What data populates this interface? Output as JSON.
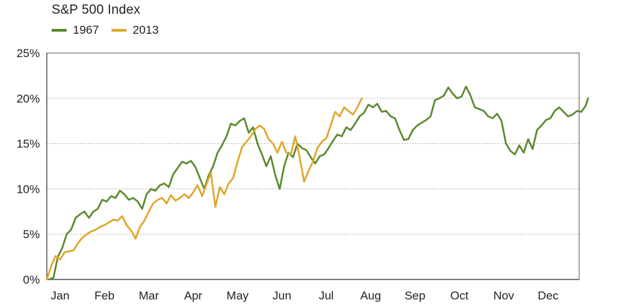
{
  "chart_data": {
    "type": "line",
    "title": "S&P 500 Index",
    "xlabel": "",
    "ylabel": "",
    "x_categories": [
      "Jan",
      "Feb",
      "Mar",
      "Apr",
      "May",
      "Jun",
      "Jul",
      "Aug",
      "Sep",
      "Oct",
      "Nov",
      "Dec"
    ],
    "xlim": [
      0,
      12
    ],
    "ylim": [
      0,
      25
    ],
    "yticks": [
      0,
      5,
      10,
      15,
      20,
      25
    ],
    "ytick_labels": [
      "0%",
      "5%",
      "10%",
      "15%",
      "20%",
      "25%"
    ],
    "grid": "horizontal-dotted",
    "legend_position": "top-left",
    "series": [
      {
        "name": "1967",
        "color": "#5b8a2e",
        "points": [
          [
            0.05,
            0.0
          ],
          [
            0.15,
            0.2
          ],
          [
            0.25,
            2.5
          ],
          [
            0.35,
            3.5
          ],
          [
            0.45,
            5.0
          ],
          [
            0.55,
            5.5
          ],
          [
            0.65,
            6.8
          ],
          [
            0.75,
            7.2
          ],
          [
            0.85,
            7.5
          ],
          [
            0.95,
            6.8
          ],
          [
            1.05,
            7.5
          ],
          [
            1.15,
            7.8
          ],
          [
            1.25,
            8.8
          ],
          [
            1.35,
            8.6
          ],
          [
            1.45,
            9.2
          ],
          [
            1.55,
            9.0
          ],
          [
            1.65,
            9.8
          ],
          [
            1.75,
            9.4
          ],
          [
            1.85,
            8.8
          ],
          [
            1.95,
            9.0
          ],
          [
            2.05,
            8.6
          ],
          [
            2.15,
            7.8
          ],
          [
            2.25,
            9.4
          ],
          [
            2.35,
            10.0
          ],
          [
            2.45,
            9.8
          ],
          [
            2.55,
            10.4
          ],
          [
            2.65,
            10.6
          ],
          [
            2.75,
            10.2
          ],
          [
            2.85,
            11.6
          ],
          [
            2.95,
            12.3
          ],
          [
            3.05,
            13.0
          ],
          [
            3.15,
            12.8
          ],
          [
            3.25,
            13.1
          ],
          [
            3.35,
            12.4
          ],
          [
            3.45,
            11.2
          ],
          [
            3.55,
            10.0
          ],
          [
            3.65,
            11.5
          ],
          [
            3.75,
            12.5
          ],
          [
            3.85,
            14.0
          ],
          [
            3.95,
            14.8
          ],
          [
            4.05,
            15.8
          ],
          [
            4.15,
            17.2
          ],
          [
            4.25,
            17.0
          ],
          [
            4.35,
            17.5
          ],
          [
            4.45,
            17.8
          ],
          [
            4.55,
            16.2
          ],
          [
            4.65,
            16.8
          ],
          [
            4.75,
            15.0
          ],
          [
            4.85,
            13.8
          ],
          [
            4.95,
            12.5
          ],
          [
            5.05,
            13.6
          ],
          [
            5.15,
            11.5
          ],
          [
            5.25,
            10.0
          ],
          [
            5.35,
            12.5
          ],
          [
            5.45,
            14.0
          ],
          [
            5.55,
            13.5
          ],
          [
            5.65,
            15.0
          ],
          [
            5.75,
            14.5
          ],
          [
            5.85,
            14.3
          ],
          [
            5.95,
            13.5
          ],
          [
            6.05,
            12.8
          ],
          [
            6.15,
            13.6
          ],
          [
            6.25,
            13.8
          ],
          [
            6.35,
            14.5
          ],
          [
            6.45,
            15.3
          ],
          [
            6.55,
            16.0
          ],
          [
            6.65,
            15.8
          ],
          [
            6.75,
            16.8
          ],
          [
            6.85,
            16.5
          ],
          [
            6.95,
            17.2
          ],
          [
            7.05,
            18.0
          ],
          [
            7.15,
            18.4
          ],
          [
            7.25,
            19.3
          ],
          [
            7.35,
            19.0
          ],
          [
            7.45,
            19.4
          ],
          [
            7.55,
            18.5
          ],
          [
            7.65,
            18.6
          ],
          [
            7.75,
            18.0
          ],
          [
            7.85,
            17.8
          ],
          [
            7.95,
            16.5
          ],
          [
            8.05,
            15.4
          ],
          [
            8.15,
            15.5
          ],
          [
            8.25,
            16.5
          ],
          [
            8.35,
            17.0
          ],
          [
            8.45,
            17.3
          ],
          [
            8.55,
            17.6
          ],
          [
            8.65,
            18.0
          ],
          [
            8.75,
            19.8
          ],
          [
            8.85,
            20.0
          ],
          [
            8.95,
            20.3
          ],
          [
            9.05,
            21.2
          ],
          [
            9.15,
            20.5
          ],
          [
            9.25,
            20.0
          ],
          [
            9.35,
            20.2
          ],
          [
            9.45,
            21.3
          ],
          [
            9.55,
            20.3
          ],
          [
            9.65,
            19.0
          ],
          [
            9.75,
            18.8
          ],
          [
            9.85,
            18.6
          ],
          [
            9.95,
            18.0
          ],
          [
            10.05,
            17.8
          ],
          [
            10.15,
            18.3
          ],
          [
            10.25,
            17.5
          ],
          [
            10.35,
            15.0
          ],
          [
            10.45,
            14.2
          ],
          [
            10.55,
            13.8
          ],
          [
            10.65,
            14.8
          ],
          [
            10.75,
            14.0
          ],
          [
            10.85,
            15.5
          ],
          [
            10.95,
            14.4
          ],
          [
            11.05,
            16.5
          ],
          [
            11.15,
            17.0
          ],
          [
            11.25,
            17.6
          ],
          [
            11.35,
            17.8
          ],
          [
            11.45,
            18.6
          ],
          [
            11.55,
            19.0
          ],
          [
            11.65,
            18.5
          ],
          [
            11.75,
            18.0
          ],
          [
            11.85,
            18.2
          ],
          [
            11.95,
            18.6
          ],
          [
            12.05,
            18.5
          ],
          [
            12.15,
            19.2
          ],
          [
            12.2,
            20.0
          ]
        ]
      },
      {
        "name": "2013",
        "color": "#e0a52a",
        "points": [
          [
            0.0,
            0.0
          ],
          [
            0.1,
            1.5
          ],
          [
            0.2,
            2.6
          ],
          [
            0.3,
            2.2
          ],
          [
            0.4,
            3.0
          ],
          [
            0.5,
            3.1
          ],
          [
            0.6,
            3.2
          ],
          [
            0.7,
            4.0
          ],
          [
            0.8,
            4.6
          ],
          [
            0.9,
            5.0
          ],
          [
            1.0,
            5.3
          ],
          [
            1.1,
            5.5
          ],
          [
            1.2,
            5.8
          ],
          [
            1.3,
            6.0
          ],
          [
            1.4,
            6.3
          ],
          [
            1.5,
            6.6
          ],
          [
            1.6,
            6.5
          ],
          [
            1.7,
            7.0
          ],
          [
            1.8,
            6.0
          ],
          [
            1.9,
            5.4
          ],
          [
            2.0,
            4.5
          ],
          [
            2.1,
            5.8
          ],
          [
            2.2,
            6.5
          ],
          [
            2.3,
            7.5
          ],
          [
            2.4,
            8.4
          ],
          [
            2.5,
            8.8
          ],
          [
            2.6,
            9.0
          ],
          [
            2.7,
            8.4
          ],
          [
            2.8,
            9.3
          ],
          [
            2.9,
            8.7
          ],
          [
            3.0,
            9.0
          ],
          [
            3.1,
            9.4
          ],
          [
            3.2,
            9.0
          ],
          [
            3.3,
            9.6
          ],
          [
            3.4,
            10.4
          ],
          [
            3.5,
            9.2
          ],
          [
            3.6,
            10.5
          ],
          [
            3.7,
            11.8
          ],
          [
            3.8,
            8.0
          ],
          [
            3.9,
            10.2
          ],
          [
            4.0,
            9.4
          ],
          [
            4.1,
            10.6
          ],
          [
            4.2,
            11.2
          ],
          [
            4.3,
            13.0
          ],
          [
            4.4,
            14.6
          ],
          [
            4.5,
            15.2
          ],
          [
            4.6,
            15.8
          ],
          [
            4.7,
            16.6
          ],
          [
            4.8,
            17.0
          ],
          [
            4.9,
            16.6
          ],
          [
            5.0,
            15.5
          ],
          [
            5.1,
            15.0
          ],
          [
            5.2,
            14.0
          ],
          [
            5.3,
            15.2
          ],
          [
            5.4,
            14.0
          ],
          [
            5.5,
            13.8
          ],
          [
            5.6,
            15.8
          ],
          [
            5.7,
            13.5
          ],
          [
            5.8,
            10.8
          ],
          [
            5.9,
            12.0
          ],
          [
            6.0,
            13.0
          ],
          [
            6.1,
            14.5
          ],
          [
            6.2,
            15.2
          ],
          [
            6.3,
            15.6
          ],
          [
            6.4,
            17.0
          ],
          [
            6.5,
            18.5
          ],
          [
            6.6,
            18.0
          ],
          [
            6.7,
            19.0
          ],
          [
            6.8,
            18.6
          ],
          [
            6.9,
            18.2
          ],
          [
            7.0,
            19.0
          ],
          [
            7.1,
            20.0
          ]
        ]
      }
    ]
  },
  "legend": {
    "items": [
      {
        "label": "1967",
        "color": "#5b8a2e"
      },
      {
        "label": "2013",
        "color": "#e0a52a"
      }
    ]
  }
}
